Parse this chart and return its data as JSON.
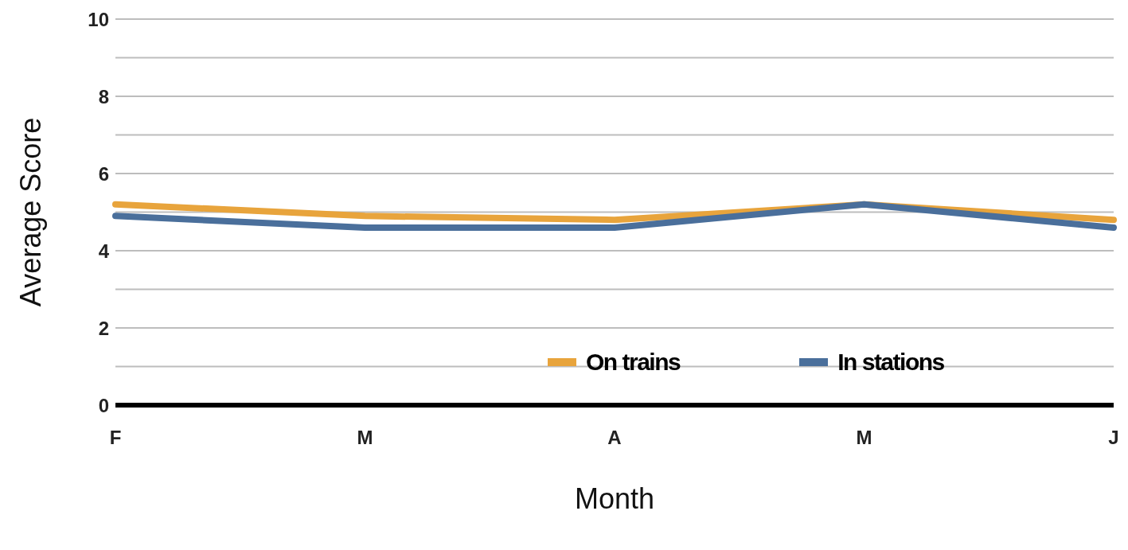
{
  "chart_data": {
    "type": "line",
    "xlabel": "Month",
    "ylabel": "Average Score",
    "categories": [
      "F",
      "M",
      "A",
      "M",
      "J"
    ],
    "series": [
      {
        "name": "On trains",
        "color": "#e8a43c",
        "values": [
          5.2,
          4.9,
          4.8,
          5.2,
          4.8
        ]
      },
      {
        "name": "In stations",
        "color": "#4a6f9b",
        "values": [
          4.9,
          4.6,
          4.6,
          5.2,
          4.6
        ]
      }
    ],
    "ylim": [
      0,
      10
    ],
    "yticks": [
      0,
      {
        "value": 1,
        "label": null
      },
      2,
      {
        "value": 3,
        "label": null
      },
      4,
      {
        "value": 5,
        "label": null
      },
      6,
      {
        "value": 7,
        "label": null
      },
      8,
      {
        "value": 9,
        "label": null
      },
      10
    ],
    "grid": "y",
    "legend": "bottom",
    "marker": "none",
    "line_style": "solid"
  }
}
